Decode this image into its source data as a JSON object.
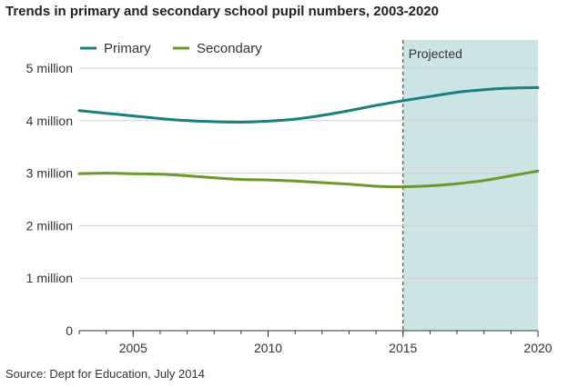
{
  "title": "Trends in primary and secondary school pupil numbers, 2003-2020",
  "source": "Source: Dept for Education, July 2014",
  "chart_data": {
    "type": "line",
    "title": "Trends in primary and secondary school pupil numbers, 2003-2020",
    "xlabel": "",
    "ylabel": "",
    "xlim": [
      2003,
      2020
    ],
    "ylim": [
      0,
      5000000
    ],
    "x_ticks": [
      2005,
      2010,
      2015,
      2020
    ],
    "x_tick_labels": [
      "2005",
      "2010",
      "2015",
      "2020"
    ],
    "y_ticks": [
      0,
      1000000,
      2000000,
      3000000,
      4000000,
      5000000
    ],
    "y_tick_labels": [
      "0",
      "1 million",
      "2 million",
      "3 million",
      "4 million",
      "5 million"
    ],
    "grid": true,
    "legend": "top-left",
    "x": [
      2003,
      2004,
      2005,
      2006,
      2007,
      2008,
      2009,
      2010,
      2011,
      2012,
      2013,
      2014,
      2015,
      2016,
      2017,
      2018,
      2019,
      2020
    ],
    "series": [
      {
        "name": "Primary",
        "color": "#1a7f7f",
        "values": [
          4190000,
          4140000,
          4090000,
          4040000,
          4000000,
          3980000,
          3970000,
          3990000,
          4030000,
          4100000,
          4190000,
          4290000,
          4380000,
          4460000,
          4540000,
          4590000,
          4620000,
          4630000
        ]
      },
      {
        "name": "Secondary",
        "color": "#6a9a2a",
        "values": [
          2990000,
          3000000,
          2990000,
          2980000,
          2950000,
          2910000,
          2880000,
          2870000,
          2850000,
          2820000,
          2790000,
          2750000,
          2740000,
          2760000,
          2800000,
          2860000,
          2950000,
          3040000
        ]
      }
    ],
    "annotations": [
      {
        "text": "Projected",
        "x_start": 2015,
        "x_end": 2020,
        "color": "#cce4e4"
      }
    ]
  }
}
